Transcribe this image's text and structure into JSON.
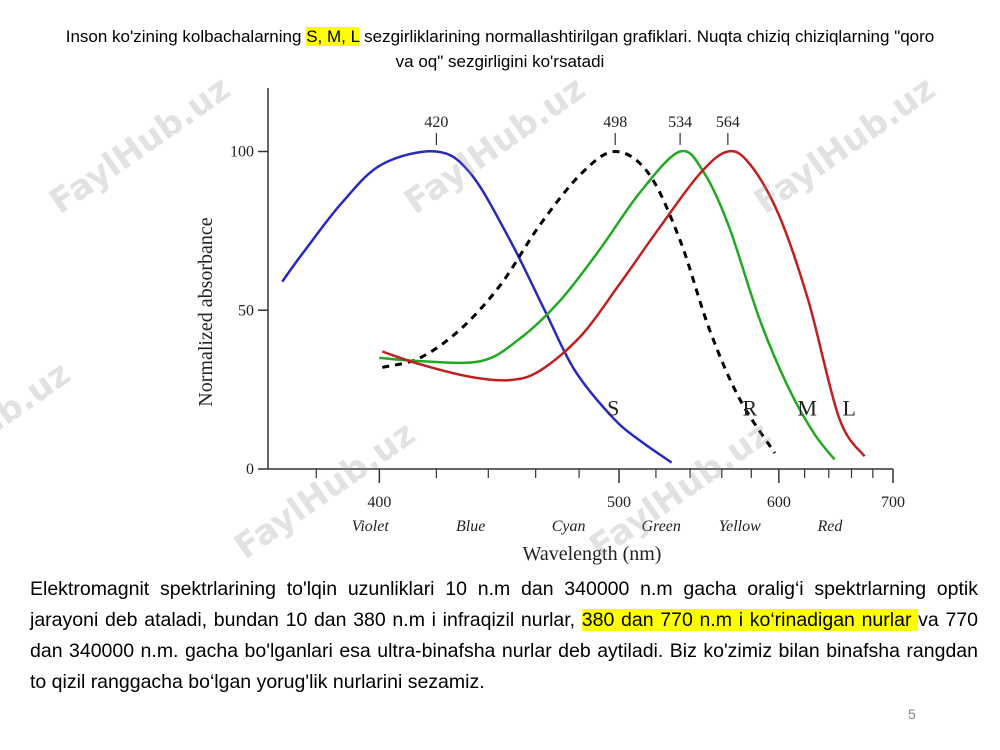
{
  "title": {
    "before": "Inson ko'zining kolbachalarning ",
    "highlight": "S, M, L",
    "after": " sezgirliklarining normallashtirilgan grafiklari.  Nuqta chiziq chiziqlarning \"qoro va oq\" sezgirligini ko'rsatadi"
  },
  "chart_data": {
    "type": "line",
    "xlabel": "Wavelength (nm)",
    "ylabel": "Normalized absorbance",
    "xscale": "reciprocal",
    "xlim": [
      366,
      700
    ],
    "xticks": [
      400,
      500,
      600,
      700
    ],
    "xminor_ticks": [
      380,
      420,
      440,
      460,
      480,
      520,
      540,
      560,
      580,
      620,
      640,
      660,
      680
    ],
    "ylim": [
      0,
      120
    ],
    "yticks": [
      0,
      50,
      100
    ],
    "peaks": [
      420,
      498,
      534,
      564
    ],
    "color_bands": [
      {
        "name": "Violet",
        "center": 397
      },
      {
        "name": "Blue",
        "center": 433
      },
      {
        "name": "Cyan",
        "center": 475
      },
      {
        "name": "Green",
        "center": 523
      },
      {
        "name": "Yellow",
        "center": 572
      },
      {
        "name": "Red",
        "center": 641
      }
    ],
    "series": [
      {
        "name": "S",
        "color": "#2727c2",
        "dashed": false,
        "label_at": [
          497,
          19
        ],
        "x": [
          370,
          376,
          388,
          401,
          420,
          433,
          449,
          464,
          478,
          497,
          511,
          529
        ],
        "values": [
          59,
          68,
          84,
          96,
          100,
          93,
          72,
          50,
          31,
          16,
          9,
          2
        ]
      },
      {
        "name": "R",
        "color": "#000000",
        "dashed": true,
        "label_at": [
          579,
          19
        ],
        "x": [
          401,
          414,
          429,
          445,
          462,
          481,
          498,
          516,
          534,
          552,
          572,
          597
        ],
        "values": [
          32,
          35,
          44,
          58,
          77,
          93,
          100,
          93,
          72,
          44,
          22,
          5
        ]
      },
      {
        "name": "M",
        "color": "#22a822",
        "dashed": false,
        "label_at": [
          622,
          19
        ],
        "x": [
          400,
          414,
          437,
          453,
          471,
          490,
          511,
          534,
          549,
          565,
          586,
          608,
          628,
          645
        ],
        "values": [
          35,
          34,
          34,
          41,
          53,
          69,
          87,
          100,
          93,
          76,
          47,
          25,
          11,
          3
        ]
      },
      {
        "name": "L",
        "color": "#c01f1f",
        "dashed": false,
        "label_at": [
          658,
          19
        ],
        "x": [
          401,
          414,
          433,
          449,
          462,
          481,
          500,
          522,
          546,
          564,
          579,
          600,
          623,
          649,
          672
        ],
        "values": [
          37,
          33,
          29,
          28,
          31,
          42,
          58,
          76,
          93,
          100,
          96,
          80,
          53,
          16,
          4
        ]
      }
    ]
  },
  "paragraph": {
    "before": "Elektromagnit spektrlarining to'lqin uzunliklari 10 n.m dan 340000 n.m gacha oralig‘i spektrlarning optik jarayoni deb ataladi, bundan 10 dan 380 n.m i infraqizil nurlar, ",
    "highlight": "380 dan 770 n.m i ko‘rinadigan nurlar ",
    "after": "va 770 dan 340000 n.m. gacha bo'lganlari esa ultra-binafsha nurlar deb aytiladi. Biz ko'zimiz bilan binafsha rangdan to qizil ranggacha bo‘lgan yorug'lik nurlarini sezamiz."
  },
  "page_number": "5",
  "watermark": "FaylHub.uz"
}
